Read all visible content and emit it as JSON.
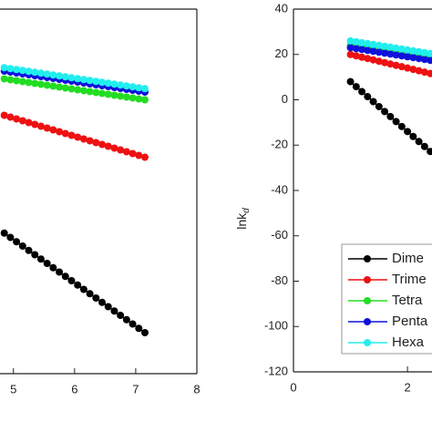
{
  "chart_data": [
    {
      "type": "line",
      "x": [
        4.85,
        4.95,
        5.05,
        5.15,
        5.25,
        5.35,
        5.45,
        5.55,
        5.65,
        5.75,
        5.85,
        5.95,
        6.05,
        6.15,
        6.25,
        6.35,
        6.45,
        6.55,
        6.65,
        6.75,
        6.85,
        6.95,
        7.05,
        7.15
      ],
      "xlim": [
        4.78,
        8
      ],
      "xticks": [
        5,
        6,
        7,
        8
      ],
      "ylim": [
        -120,
        40
      ],
      "series": [
        {
          "color": "#000000",
          "values": [
            -58.3,
            -60.2,
            -62.1,
            -64.0,
            -65.9,
            -67.8,
            -69.7,
            -71.6,
            -73.5,
            -75.4,
            -77.3,
            -79.2,
            -81.1,
            -83.0,
            -84.9,
            -86.8,
            -88.7,
            -90.6,
            -92.5,
            -94.4,
            -96.3,
            -98.2,
            -100.1,
            -102.0
          ]
        },
        {
          "color": "#ee1111",
          "values": [
            -6.6,
            -7.4,
            -8.2,
            -9.0,
            -9.8,
            -10.6,
            -11.4,
            -12.2,
            -13.0,
            -13.8,
            -14.6,
            -15.4,
            -16.2,
            -17.0,
            -17.8,
            -18.6,
            -19.4,
            -20.2,
            -21.0,
            -21.8,
            -22.6,
            -23.4,
            -24.2,
            -25.0
          ]
        },
        {
          "color": "#22dd22",
          "values": [
            9.4,
            9.0,
            8.6,
            8.2,
            7.8,
            7.4,
            7.0,
            6.6,
            6.2,
            5.8,
            5.4,
            5.0,
            4.6,
            4.2,
            3.8,
            3.4,
            3.0,
            2.6,
            2.2,
            1.8,
            1.4,
            1.0,
            0.6,
            0.2
          ]
        },
        {
          "color": "#1111dd",
          "values": [
            12.8,
            12.4,
            12.0,
            11.6,
            11.2,
            10.8,
            10.4,
            10.0,
            9.6,
            9.2,
            8.8,
            8.4,
            8.0,
            7.6,
            7.2,
            6.8,
            6.4,
            6.0,
            5.6,
            5.2,
            4.8,
            4.4,
            4.0,
            3.6
          ]
        },
        {
          "color": "#22eeee",
          "values": [
            14.3,
            13.9,
            13.5,
            13.1,
            12.7,
            12.3,
            11.9,
            11.5,
            11.1,
            10.7,
            10.3,
            9.9,
            9.5,
            9.1,
            8.7,
            8.3,
            7.9,
            7.5,
            7.1,
            6.7,
            6.3,
            5.9,
            5.5,
            5.1
          ]
        }
      ]
    },
    {
      "type": "line",
      "y_label": "lnk",
      "y_label_sub": "d",
      "x": [
        1.0,
        1.1,
        1.2,
        1.3,
        1.4,
        1.5,
        1.6,
        1.7,
        1.8,
        1.9,
        2.0,
        2.1,
        2.2,
        2.3,
        2.4
      ],
      "xlim": [
        0,
        2.43
      ],
      "xticks": [
        0,
        2
      ],
      "ylim": [
        -120,
        40
      ],
      "yticks": [
        40,
        20,
        0,
        -20,
        -40,
        -60,
        -80,
        -100,
        -120
      ],
      "series": [
        {
          "name": "Dime",
          "color": "#000000",
          "values": [
            8.0,
            5.8,
            3.6,
            1.4,
            -0.8,
            -3.0,
            -5.2,
            -7.4,
            -9.6,
            -11.8,
            -14.0,
            -16.2,
            -18.4,
            -20.6,
            -22.8
          ]
        },
        {
          "name": "Trime",
          "color": "#ee1111",
          "values": [
            20.0,
            19.4,
            18.8,
            18.2,
            17.6,
            17.0,
            16.4,
            15.8,
            15.2,
            14.6,
            14.0,
            13.4,
            12.8,
            12.2,
            11.6
          ]
        },
        {
          "name": "Tetra",
          "color": "#22dd22",
          "values": [
            24.0,
            23.6,
            23.2,
            22.8,
            22.4,
            22.0,
            21.6,
            21.2,
            20.8,
            20.4,
            20.0,
            19.6,
            19.2,
            18.8,
            18.4
          ]
        },
        {
          "name": "Penta",
          "color": "#1111dd",
          "values": [
            23.0,
            22.6,
            22.2,
            21.8,
            21.4,
            21.0,
            20.6,
            20.2,
            19.8,
            19.4,
            19.0,
            18.6,
            18.2,
            17.8,
            17.4
          ]
        },
        {
          "name": "Hexa",
          "color": "#22eeee",
          "values": [
            26.0,
            25.6,
            25.2,
            24.8,
            24.4,
            24.0,
            23.6,
            23.2,
            22.8,
            22.4,
            22.0,
            21.6,
            21.2,
            20.8,
            20.4
          ]
        }
      ]
    }
  ]
}
